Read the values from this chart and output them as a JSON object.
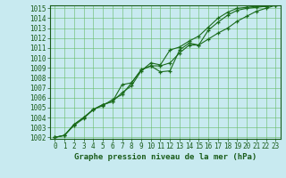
{
  "title": "Graphe pression niveau de la mer (hPa)",
  "xlabel_hours": [
    0,
    1,
    2,
    3,
    4,
    5,
    6,
    7,
    8,
    9,
    10,
    11,
    12,
    13,
    14,
    15,
    16,
    17,
    18,
    19,
    20,
    21,
    22,
    23
  ],
  "ylim_min": 1002,
  "ylim_max": 1015,
  "yticks": [
    1002,
    1003,
    1004,
    1005,
    1006,
    1007,
    1008,
    1009,
    1010,
    1011,
    1012,
    1013,
    1014,
    1015
  ],
  "line1": [
    1002.0,
    1002.2,
    1003.3,
    1004.0,
    1004.8,
    1005.3,
    1005.6,
    1006.5,
    1007.2,
    1008.7,
    1009.5,
    1009.3,
    1010.8,
    1011.1,
    1011.7,
    1012.2,
    1013.1,
    1014.0,
    1014.6,
    1015.0,
    1015.1,
    1015.2,
    1015.2,
    1015.3
  ],
  "line2": [
    1002.0,
    1002.2,
    1003.2,
    1003.9,
    1004.8,
    1005.2,
    1005.8,
    1006.3,
    1007.5,
    1008.8,
    1009.2,
    1009.2,
    1009.5,
    1010.5,
    1011.3,
    1011.3,
    1011.9,
    1012.5,
    1013.0,
    1013.7,
    1014.2,
    1014.7,
    1015.0,
    1015.3
  ],
  "line3": [
    1002.0,
    1002.2,
    1003.3,
    1004.0,
    1004.8,
    1005.3,
    1005.6,
    1007.3,
    1007.5,
    1008.8,
    1009.2,
    1008.6,
    1008.7,
    1010.8,
    1011.5,
    1011.3,
    1012.8,
    1013.6,
    1014.3,
    1014.8,
    1015.0,
    1015.1,
    1015.2,
    1015.3
  ],
  "line_color": "#1a6b1a",
  "bg_color": "#c8eaf0",
  "grid_color": "#66bb66",
  "axis_color": "#1a5c1a",
  "title_color": "#1a5c1a",
  "marker": "+",
  "marker_size": 3.5,
  "line_width": 0.8,
  "tick_fontsize": 5.5,
  "title_fontsize": 6.5
}
